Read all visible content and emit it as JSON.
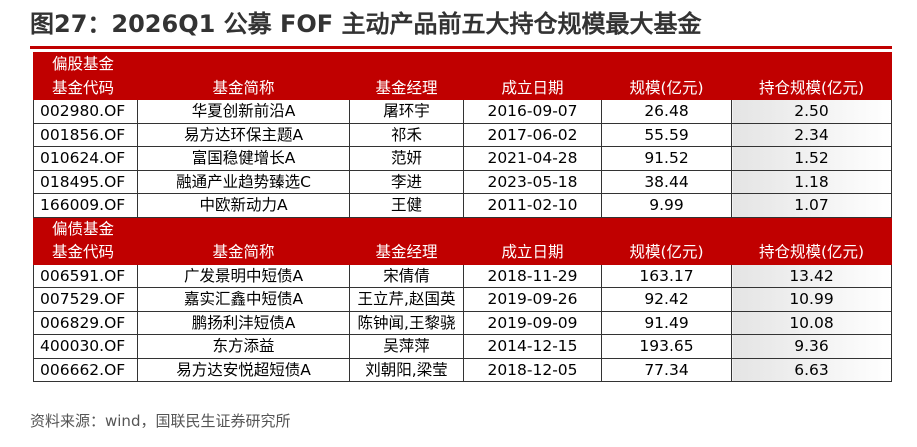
{
  "title": "图27：2026Q1 公募 FOF 主动产品前五大持仓规模最大基金",
  "columns": [
    "基金代码",
    "基金简称",
    "基金经理",
    "成立日期",
    "规模(亿元)",
    "持仓规模(亿元)"
  ],
  "sections": [
    {
      "label": "偏股基金",
      "rows": [
        [
          "002980.OF",
          "华夏创新前沿A",
          "屠环宇",
          "2016-09-07",
          "26.48",
          "2.50"
        ],
        [
          "001856.OF",
          "易方达环保主题A",
          "祁禾",
          "2017-06-02",
          "55.59",
          "2.34"
        ],
        [
          "010624.OF",
          "富国稳健增长A",
          "范妍",
          "2021-04-28",
          "91.52",
          "1.52"
        ],
        [
          "018495.OF",
          "融通产业趋势臻选C",
          "李进",
          "2023-05-18",
          "38.44",
          "1.18"
        ],
        [
          "166009.OF",
          "中欧新动力A",
          "王健",
          "2011-02-10",
          "9.99",
          "1.07"
        ]
      ]
    },
    {
      "label": "偏债基金",
      "rows": [
        [
          "006591.OF",
          "广发景明中短债A",
          "宋倩倩",
          "2018-11-29",
          "163.17",
          "13.42"
        ],
        [
          "007529.OF",
          "嘉实汇鑫中短债A",
          "王立芹,赵国英",
          "2019-09-26",
          "92.42",
          "10.99"
        ],
        [
          "006829.OF",
          "鹏扬利沣短债A",
          "陈钟闻,王黎骁",
          "2019-09-09",
          "91.49",
          "10.08"
        ],
        [
          "400030.OF",
          "东方添益",
          "吴萍萍",
          "2014-12-15",
          "193.65",
          "9.36"
        ],
        [
          "006662.OF",
          "易方达安悦超短债A",
          "刘朝阳,梁莹",
          "2018-12-05",
          "77.34",
          "6.63"
        ]
      ]
    }
  ],
  "source": "资料来源：wind，国联民生证券研究所"
}
